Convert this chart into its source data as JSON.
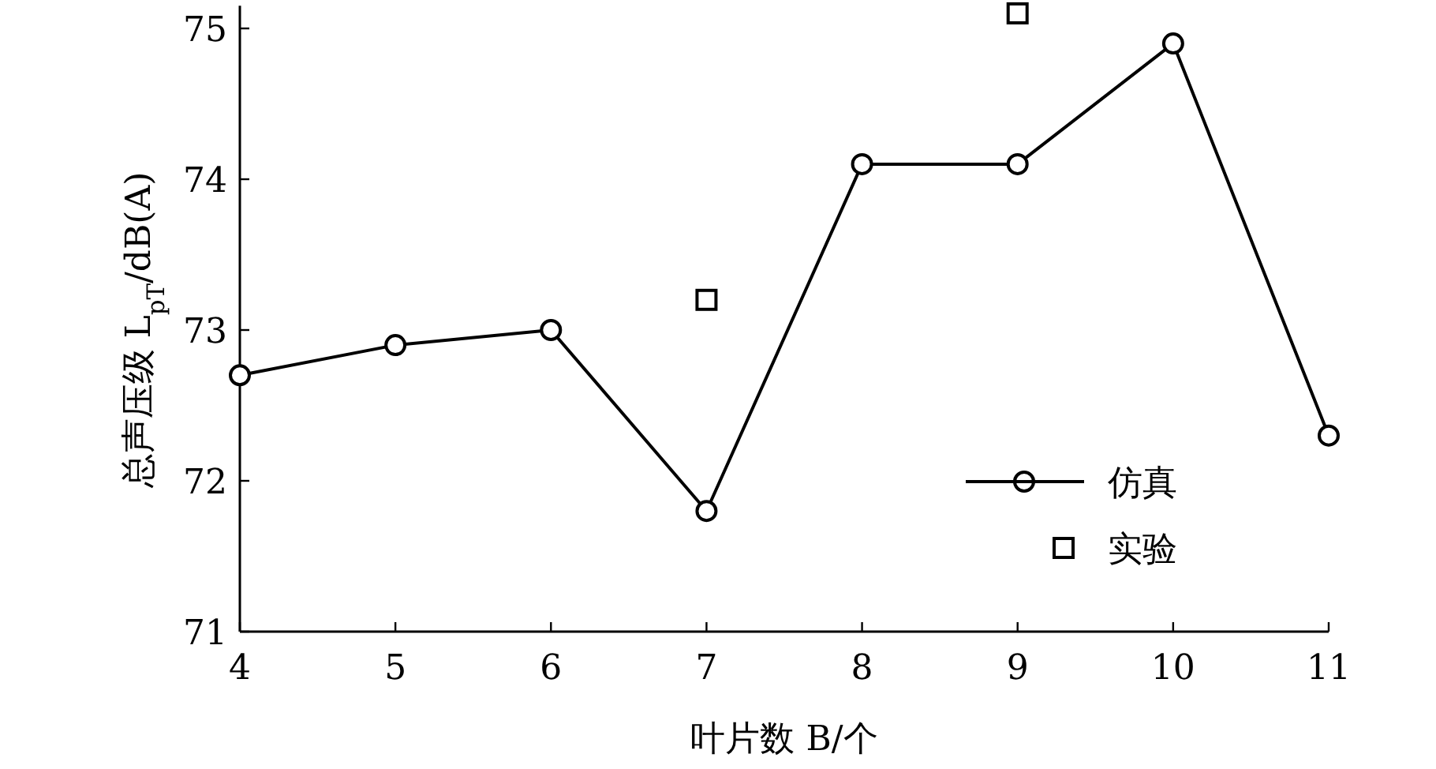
{
  "chart_data": {
    "type": "line",
    "xlabel": "叶片数 B/个",
    "ylabel": "总声压级 L$_{pT}$/dB(A)",
    "xlim": [
      4,
      11
    ],
    "xticks": [
      4,
      5,
      6,
      7,
      8,
      9,
      10,
      11
    ],
    "ylim": [
      71,
      75.15
    ],
    "yticks": [
      71,
      72,
      73,
      74,
      75
    ],
    "grid": false,
    "legend": "bottom right",
    "series": [
      {
        "name": "仿真",
        "color": "#000000",
        "marker": "circle",
        "line_style": "solid",
        "x": [
          4,
          5,
          6,
          7,
          8,
          9,
          10,
          11
        ],
        "values": [
          72.7,
          72.9,
          73.0,
          71.8,
          74.1,
          74.1,
          74.9,
          72.3
        ]
      },
      {
        "name": "实验",
        "type": "scatter",
        "color": "#000000",
        "marker": "square",
        "x": [
          7,
          9
        ],
        "values": [
          73.2,
          75.1
        ]
      }
    ]
  }
}
